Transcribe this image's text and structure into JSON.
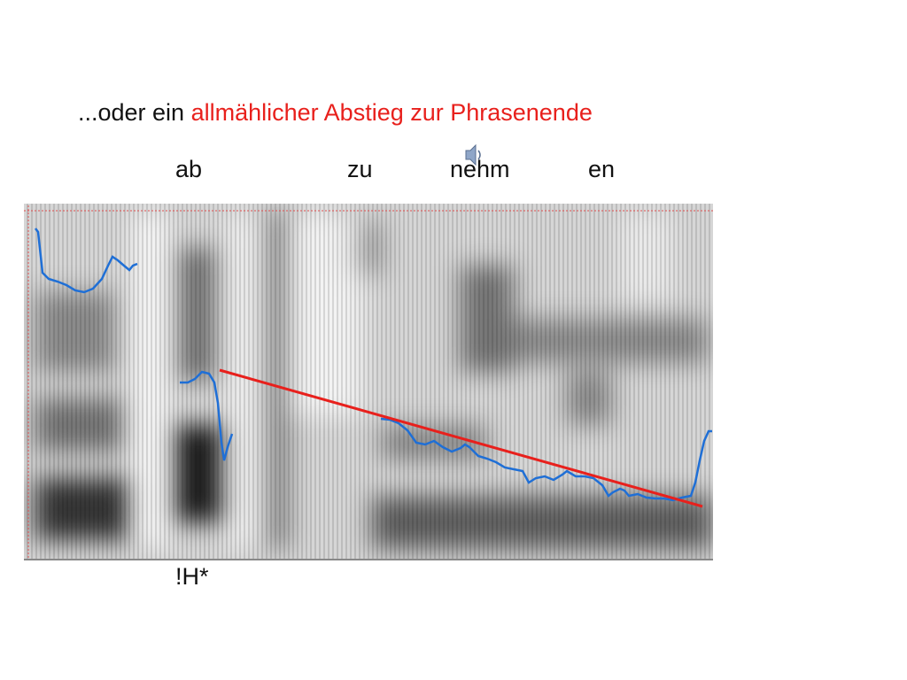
{
  "title": {
    "intro": "...oder ein",
    "highlight": "allmählicher Abstieg zur Phrasenende"
  },
  "syllables": [
    "ab",
    "zu",
    "nehm",
    "en"
  ],
  "tone_label": "!H*"
}
